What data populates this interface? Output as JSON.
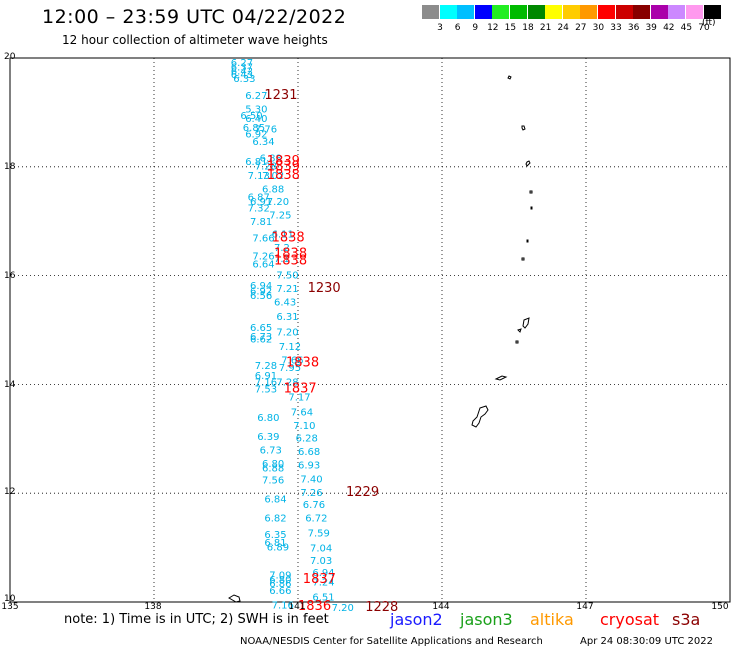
{
  "header": {
    "title": "12:00 – 23:59 UTC 04/22/2022",
    "subtitle": "12 hour collection of altimeter wave heights"
  },
  "legend": {
    "unit": "(ft)",
    "bins": [
      {
        "label": "3",
        "color": "#8c8c8c"
      },
      {
        "label": "6",
        "color": "#00ffff"
      },
      {
        "label": "9",
        "color": "#00bfff"
      },
      {
        "label": "12",
        "color": "#0000ff"
      },
      {
        "label": "15",
        "color": "#22ee22"
      },
      {
        "label": "18",
        "color": "#00bb00"
      },
      {
        "label": "21",
        "color": "#008800"
      },
      {
        "label": "24",
        "color": "#ffff00"
      },
      {
        "label": "27",
        "color": "#ffcc00"
      },
      {
        "label": "30",
        "color": "#ff9900"
      },
      {
        "label": "33",
        "color": "#ff0000"
      },
      {
        "label": "36",
        "color": "#cc0000"
      },
      {
        "label": "39",
        "color": "#880000"
      },
      {
        "label": "42",
        "color": "#aa00aa"
      },
      {
        "label": "45",
        "color": "#cc88ff"
      },
      {
        "label": "70",
        "color": "#ff99ee"
      },
      {
        "label": "",
        "color": "#000000"
      }
    ]
  },
  "axes": {
    "lat_labels": [
      "20",
      "18",
      "16",
      "14",
      "12",
      "10"
    ],
    "lon_labels": [
      "135",
      "138",
      "141",
      "144",
      "147",
      "150"
    ]
  },
  "observations": {
    "color": "#00b3e6",
    "points": [
      {
        "lon": 139.6,
        "lat": 19.85,
        "v": "6.27"
      },
      {
        "lon": 139.6,
        "lat": 19.77,
        "v": "6.37"
      },
      {
        "lon": 139.6,
        "lat": 19.7,
        "v": "6.42"
      },
      {
        "lon": 139.6,
        "lat": 19.63,
        "v": "6.43"
      },
      {
        "lon": 139.65,
        "lat": 19.56,
        "v": "6.33"
      },
      {
        "lon": 139.9,
        "lat": 19.25,
        "v": "6.27"
      },
      {
        "lon": 139.9,
        "lat": 19.0,
        "v": "5.30"
      },
      {
        "lon": 139.8,
        "lat": 18.88,
        "v": "6.50"
      },
      {
        "lon": 139.9,
        "lat": 18.82,
        "v": "6.40"
      },
      {
        "lon": 139.85,
        "lat": 18.66,
        "v": "6.85"
      },
      {
        "lon": 140.1,
        "lat": 18.63,
        "v": "7.76"
      },
      {
        "lon": 139.9,
        "lat": 18.54,
        "v": "6.92"
      },
      {
        "lon": 140.05,
        "lat": 18.4,
        "v": "6.34"
      },
      {
        "lon": 140.2,
        "lat": 18.1,
        "v": "6.88"
      },
      {
        "lon": 139.9,
        "lat": 18.03,
        "v": "6.81"
      },
      {
        "lon": 140.1,
        "lat": 17.95,
        "v": "7.28"
      },
      {
        "lon": 139.95,
        "lat": 17.78,
        "v": "7.13"
      },
      {
        "lon": 140.25,
        "lat": 17.78,
        "v": "7.02"
      },
      {
        "lon": 140.25,
        "lat": 17.53,
        "v": "6.88"
      },
      {
        "lon": 139.95,
        "lat": 17.38,
        "v": "6.87"
      },
      {
        "lon": 140.0,
        "lat": 17.3,
        "v": "6.91"
      },
      {
        "lon": 140.35,
        "lat": 17.3,
        "v": "7.20"
      },
      {
        "lon": 139.95,
        "lat": 17.18,
        "v": "7.32"
      },
      {
        "lon": 140.4,
        "lat": 17.05,
        "v": "7.25"
      },
      {
        "lon": 140.0,
        "lat": 16.93,
        "v": "7.81"
      },
      {
        "lon": 140.45,
        "lat": 16.7,
        "v": "6.11"
      },
      {
        "lon": 140.05,
        "lat": 16.63,
        "v": "7.66"
      },
      {
        "lon": 140.5,
        "lat": 16.45,
        "v": "7.2"
      },
      {
        "lon": 140.05,
        "lat": 16.3,
        "v": "7.26"
      },
      {
        "lon": 140.5,
        "lat": 16.25,
        "v": "7.1"
      },
      {
        "lon": 140.05,
        "lat": 16.15,
        "v": "6.64"
      },
      {
        "lon": 140.55,
        "lat": 15.95,
        "v": "7.50"
      },
      {
        "lon": 140.0,
        "lat": 15.75,
        "v": "6.94"
      },
      {
        "lon": 140.55,
        "lat": 15.7,
        "v": "7.21"
      },
      {
        "lon": 140.0,
        "lat": 15.65,
        "v": "6.92"
      },
      {
        "lon": 140.0,
        "lat": 15.57,
        "v": "6.56"
      },
      {
        "lon": 140.5,
        "lat": 15.45,
        "v": "6.43"
      },
      {
        "lon": 140.55,
        "lat": 15.18,
        "v": "6.31"
      },
      {
        "lon": 140.0,
        "lat": 14.98,
        "v": "6.65"
      },
      {
        "lon": 140.55,
        "lat": 14.9,
        "v": "7.20"
      },
      {
        "lon": 140.0,
        "lat": 14.82,
        "v": "6.73"
      },
      {
        "lon": 140.0,
        "lat": 14.77,
        "v": "6.62"
      },
      {
        "lon": 140.6,
        "lat": 14.63,
        "v": "7.12"
      },
      {
        "lon": 140.65,
        "lat": 14.38,
        "v": "7.66"
      },
      {
        "lon": 140.1,
        "lat": 14.28,
        "v": "7.28"
      },
      {
        "lon": 140.6,
        "lat": 14.25,
        "v": "7.95"
      },
      {
        "lon": 140.1,
        "lat": 14.1,
        "v": "6.91"
      },
      {
        "lon": 140.1,
        "lat": 13.98,
        "v": "7.16"
      },
      {
        "lon": 140.55,
        "lat": 13.98,
        "v": "7.28"
      },
      {
        "lon": 140.1,
        "lat": 13.85,
        "v": "7.53"
      },
      {
        "lon": 140.8,
        "lat": 13.7,
        "v": "7.17"
      },
      {
        "lon": 140.85,
        "lat": 13.43,
        "v": "7.64"
      },
      {
        "lon": 140.15,
        "lat": 13.33,
        "v": "6.80"
      },
      {
        "lon": 140.9,
        "lat": 13.18,
        "v": "7.10"
      },
      {
        "lon": 140.15,
        "lat": 12.98,
        "v": "6.39"
      },
      {
        "lon": 140.95,
        "lat": 12.95,
        "v": "6.28"
      },
      {
        "lon": 140.2,
        "lat": 12.73,
        "v": "6.73"
      },
      {
        "lon": 141.0,
        "lat": 12.7,
        "v": "6.68"
      },
      {
        "lon": 140.25,
        "lat": 12.48,
        "v": "6.80"
      },
      {
        "lon": 141.0,
        "lat": 12.45,
        "v": "6.93"
      },
      {
        "lon": 140.25,
        "lat": 12.4,
        "v": "6.88"
      },
      {
        "lon": 141.05,
        "lat": 12.2,
        "v": "7.40"
      },
      {
        "lon": 140.25,
        "lat": 12.18,
        "v": "7.56"
      },
      {
        "lon": 141.05,
        "lat": 11.95,
        "v": "7.26"
      },
      {
        "lon": 140.3,
        "lat": 11.83,
        "v": "6.84"
      },
      {
        "lon": 141.1,
        "lat": 11.73,
        "v": "6.76"
      },
      {
        "lon": 140.3,
        "lat": 11.48,
        "v": "6.82"
      },
      {
        "lon": 141.15,
        "lat": 11.48,
        "v": "6.72"
      },
      {
        "lon": 140.3,
        "lat": 11.18,
        "v": "6.35"
      },
      {
        "lon": 141.2,
        "lat": 11.2,
        "v": "7.59"
      },
      {
        "lon": 140.3,
        "lat": 11.03,
        "v": "6.81"
      },
      {
        "lon": 140.35,
        "lat": 10.95,
        "v": "6.89"
      },
      {
        "lon": 141.25,
        "lat": 10.93,
        "v": "7.04"
      },
      {
        "lon": 141.25,
        "lat": 10.7,
        "v": "7.03"
      },
      {
        "lon": 141.3,
        "lat": 10.48,
        "v": "6.94"
      },
      {
        "lon": 140.4,
        "lat": 10.43,
        "v": "7.09"
      },
      {
        "lon": 140.4,
        "lat": 10.35,
        "v": "6.80"
      },
      {
        "lon": 141.3,
        "lat": 10.3,
        "v": "7.24"
      },
      {
        "lon": 140.4,
        "lat": 10.28,
        "v": "6.86"
      },
      {
        "lon": 140.4,
        "lat": 10.15,
        "v": "6.66"
      },
      {
        "lon": 141.3,
        "lat": 10.03,
        "v": "6.51"
      },
      {
        "lon": 140.45,
        "lat": 9.88,
        "v": "7.16"
      },
      {
        "lon": 141.7,
        "lat": 9.83,
        "v": "7.20"
      }
    ]
  },
  "time_labels": [
    {
      "lon": 140.3,
      "lat": 19.25,
      "v": "1231",
      "color": "#8b0000"
    },
    {
      "lon": 140.35,
      "lat": 18.03,
      "v": "1839",
      "color": "#ff0000"
    },
    {
      "lon": 140.35,
      "lat": 17.93,
      "v": "1839",
      "color": "#ff0000"
    },
    {
      "lon": 140.35,
      "lat": 17.78,
      "v": "1838",
      "color": "#ff0000"
    },
    {
      "lon": 140.45,
      "lat": 16.63,
      "v": "1838",
      "color": "#ff0000"
    },
    {
      "lon": 140.5,
      "lat": 16.33,
      "v": "1838",
      "color": "#ff0000"
    },
    {
      "lon": 140.5,
      "lat": 16.2,
      "v": "1838",
      "color": "#ff0000"
    },
    {
      "lon": 141.2,
      "lat": 15.7,
      "v": "1230",
      "color": "#8b0000"
    },
    {
      "lon": 140.75,
      "lat": 14.33,
      "v": "1838",
      "color": "#ff0000"
    },
    {
      "lon": 140.7,
      "lat": 13.85,
      "v": "1837",
      "color": "#ff0000"
    },
    {
      "lon": 142.0,
      "lat": 11.95,
      "v": "1229",
      "color": "#8b0000"
    },
    {
      "lon": 141.1,
      "lat": 10.35,
      "v": "1837",
      "color": "#ff0000"
    },
    {
      "lon": 141.0,
      "lat": 9.85,
      "v": "1836",
      "color": "#ff0000"
    },
    {
      "lon": 142.4,
      "lat": 9.83,
      "v": "1228",
      "color": "#8b0000"
    }
  ],
  "footer": {
    "note": "note: 1) Time is in UTC; 2) SWH is in feet",
    "satellites": [
      {
        "name": "jason2",
        "color": "#1a1aff"
      },
      {
        "name": "jason3",
        "color": "#1aa01a"
      },
      {
        "name": "altika",
        "color": "#ff9900"
      },
      {
        "name": "cryosat",
        "color": "#ff0000"
      },
      {
        "name": "s3a",
        "color": "#8b0000"
      }
    ],
    "credit": "NOAA/NESDIS Center for Satellite Applications and Research",
    "timestamp": "Apr 24 08:30:09 UTC 2022"
  }
}
